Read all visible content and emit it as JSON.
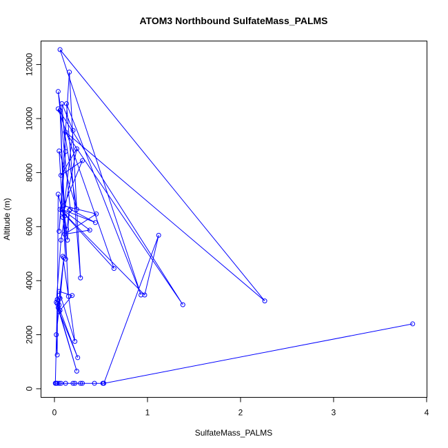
{
  "chart_data": {
    "type": "line",
    "title": "ATOM3 Northbound SulfateMass_PALMS",
    "xlabel": "SulfateMass_PALMS",
    "ylabel": "Altitude (m)",
    "xlim": [
      0,
      4
    ],
    "ylim": [
      0,
      12500
    ],
    "xticks": [
      0,
      1,
      2,
      3,
      4
    ],
    "yticks": [
      0,
      2000,
      4000,
      6000,
      8000,
      10000,
      12000
    ],
    "marker": "open-circle",
    "grid": false,
    "legend": "none",
    "series": [
      {
        "color": "#0000ff",
        "points": [
          [
            0.01,
            200
          ],
          [
            0.02,
            200
          ],
          [
            0.03,
            200
          ],
          [
            0.05,
            200
          ],
          [
            0.07,
            200
          ],
          [
            0.12,
            200
          ],
          [
            0.2,
            200
          ],
          [
            0.22,
            200
          ],
          [
            0.28,
            200
          ],
          [
            0.3,
            200
          ],
          [
            0.43,
            200
          ],
          [
            0.52,
            200
          ],
          [
            0.53,
            200
          ],
          [
            3.85,
            2400
          ],
          [
            0.53,
            200
          ],
          [
            1.12,
            5680
          ],
          [
            0.97,
            3470
          ],
          [
            0.06,
            6640
          ],
          [
            0.64,
            4450
          ],
          [
            0.04,
            10360
          ],
          [
            1.38,
            3110
          ],
          [
            0.12,
            9500
          ],
          [
            2.26,
            3250
          ],
          [
            0.06,
            12550
          ],
          [
            0.93,
            3470
          ],
          [
            0.13,
            10550
          ],
          [
            0.28,
            4100
          ],
          [
            0.16,
            11720
          ],
          [
            0.05,
            5830
          ],
          [
            0.12,
            8780
          ],
          [
            0.08,
            10550
          ],
          [
            0.2,
            9560
          ],
          [
            0.09,
            6340
          ],
          [
            0.24,
            8880
          ],
          [
            0.07,
            7900
          ],
          [
            0.3,
            8440
          ],
          [
            0.1,
            6770
          ],
          [
            0.45,
            6470
          ],
          [
            0.11,
            5720
          ],
          [
            0.38,
            5870
          ],
          [
            0.08,
            6640
          ],
          [
            0.44,
            6150
          ],
          [
            0.17,
            6640
          ],
          [
            0.04,
            11000
          ],
          [
            0.24,
            6640
          ],
          [
            0.05,
            8800
          ],
          [
            0.12,
            4800
          ],
          [
            0.06,
            10300
          ],
          [
            0.15,
            3420
          ],
          [
            0.09,
            4900
          ],
          [
            0.22,
            1750
          ],
          [
            0.05,
            3600
          ],
          [
            0.19,
            3450
          ],
          [
            0.06,
            2900
          ],
          [
            0.25,
            1150
          ],
          [
            0.05,
            2850
          ],
          [
            0.1,
            4850
          ],
          [
            0.04,
            3000
          ],
          [
            0.03,
            3300
          ],
          [
            0.05,
            3100
          ],
          [
            0.06,
            3350
          ],
          [
            0.02,
            2000
          ],
          [
            0.03,
            1250
          ],
          [
            0.04,
            7200
          ],
          [
            0.09,
            6500
          ],
          [
            0.13,
            5900
          ],
          [
            0.16,
            6600
          ],
          [
            0.14,
            5500
          ],
          [
            0.11,
            6400
          ],
          [
            0.07,
            5500
          ],
          [
            0.02,
            3200
          ],
          [
            0.24,
            650
          ],
          [
            0.03,
            3150
          ],
          [
            0.01,
            200
          ]
        ]
      }
    ]
  }
}
